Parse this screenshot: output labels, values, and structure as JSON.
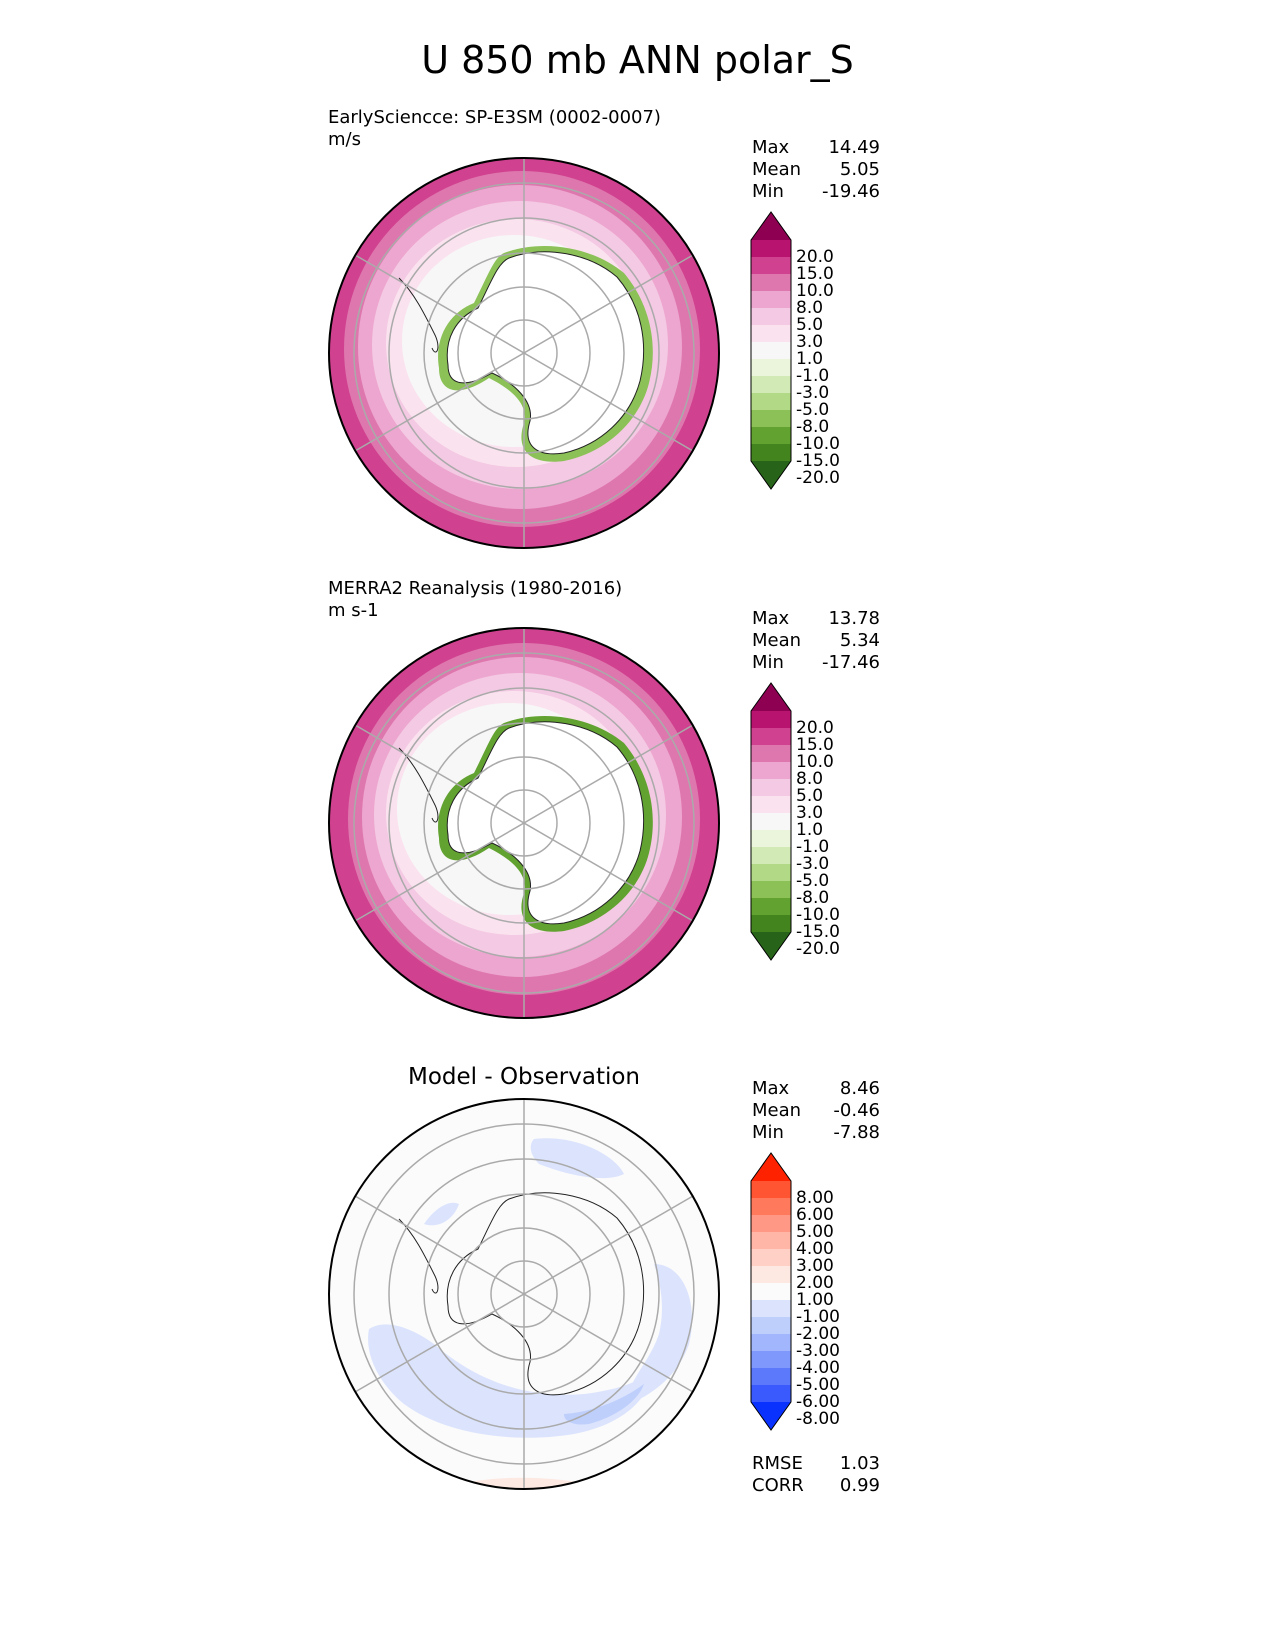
{
  "title": "U 850 mb ANN polar_S",
  "chart_data": [
    {
      "type": "heatmap",
      "projection": "south-polar-stereographic",
      "title": "EarlySciencce: SP-E3SM (0002-0007)",
      "units": "m/s",
      "stats": {
        "max": "14.49",
        "mean": "5.05",
        "min": "-19.46"
      },
      "colorbar_levels": [
        "20.0",
        "15.0",
        "10.0",
        "8.0",
        "5.0",
        "3.0",
        "1.0",
        "-1.0",
        "-3.0",
        "-5.0",
        "-8.0",
        "-10.0",
        "-15.0",
        "-20.0"
      ],
      "colors": [
        "#8e0152",
        "#b8136f",
        "#d0418f",
        "#de77ae",
        "#eda6cf",
        "#f4c9e3",
        "#fae3ef",
        "#f7f7f7",
        "#eaf5dc",
        "#d2eab5",
        "#b2da86",
        "#8bc157",
        "#62a231",
        "#44841f",
        "#276419"
      ]
    },
    {
      "type": "heatmap",
      "projection": "south-polar-stereographic",
      "title": "MERRA2 Reanalysis (1980-2016)",
      "units": "m s-1",
      "stats": {
        "max": "13.78",
        "mean": "5.34",
        "min": "-17.46"
      },
      "colorbar_levels": [
        "20.0",
        "15.0",
        "10.0",
        "8.0",
        "5.0",
        "3.0",
        "1.0",
        "-1.0",
        "-3.0",
        "-5.0",
        "-8.0",
        "-10.0",
        "-15.0",
        "-20.0"
      ],
      "colors": [
        "#8e0152",
        "#b8136f",
        "#d0418f",
        "#de77ae",
        "#eda6cf",
        "#f4c9e3",
        "#fae3ef",
        "#f7f7f7",
        "#eaf5dc",
        "#d2eab5",
        "#b2da86",
        "#8bc157",
        "#62a231",
        "#44841f",
        "#276419"
      ]
    },
    {
      "type": "heatmap",
      "projection": "south-polar-stereographic",
      "title": "Model - Observation",
      "units": "",
      "stats": {
        "max": "8.46",
        "mean": "-0.46",
        "min": "-7.88"
      },
      "metrics": {
        "rmse": "1.03",
        "corr": "0.99"
      },
      "colorbar_levels": [
        "8.00",
        "6.00",
        "5.00",
        "4.00",
        "3.00",
        "2.00",
        "1.00",
        "-1.00",
        "-2.00",
        "-3.00",
        "-4.00",
        "-5.00",
        "-6.00",
        "-8.00"
      ],
      "colors": [
        "#ff2200",
        "#ff5533",
        "#ff7a5c",
        "#ff9985",
        "#ffb6a6",
        "#ffd1c6",
        "#fde8e2",
        "#fbfbfb",
        "#dce4fd",
        "#bfcffc",
        "#a1b6fc",
        "#7f98fb",
        "#5c78fb",
        "#3a5afd",
        "#0a32ff"
      ]
    }
  ],
  "labels": {
    "max": "Max",
    "mean": "Mean",
    "min": "Min",
    "rmse": "RMSE",
    "corr": "CORR"
  }
}
